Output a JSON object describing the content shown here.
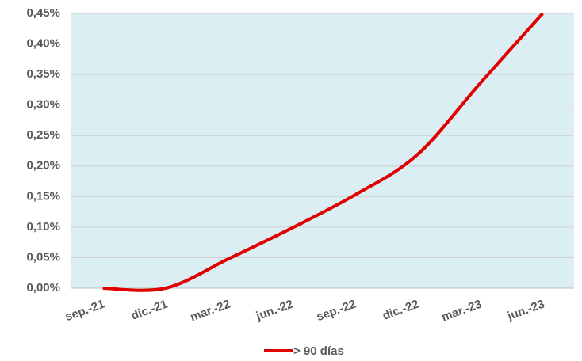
{
  "chart_data": {
    "type": "line",
    "categories": [
      "sep.-21",
      "dic.-21",
      "mar.-22",
      "jun.-22",
      "sep.-22",
      "dic.-22",
      "mar.-23",
      "jun.-23"
    ],
    "series": [
      {
        "name": "> 90 días",
        "color": "#e00000",
        "values": [
          0,
          0,
          0.048,
          0.098,
          0.152,
          0.218,
          0.335,
          0.45
        ]
      }
    ],
    "ylim": [
      0,
      0.45
    ],
    "yticks": [
      {
        "value": 0,
        "label": "0,00%"
      },
      {
        "value": 0.05,
        "label": "0,05%"
      },
      {
        "value": 0.1,
        "label": "0,10%"
      },
      {
        "value": 0.15,
        "label": "0,15%"
      },
      {
        "value": 0.2,
        "label": "0,20%"
      },
      {
        "value": 0.25,
        "label": "0,25%"
      },
      {
        "value": 0.3,
        "label": "0,30%"
      },
      {
        "value": 0.35,
        "label": "0,35%"
      },
      {
        "value": 0.4,
        "label": "0,40%"
      },
      {
        "value": 0.45,
        "label": "0,45%"
      }
    ],
    "grid": true,
    "legend": "bottom"
  }
}
